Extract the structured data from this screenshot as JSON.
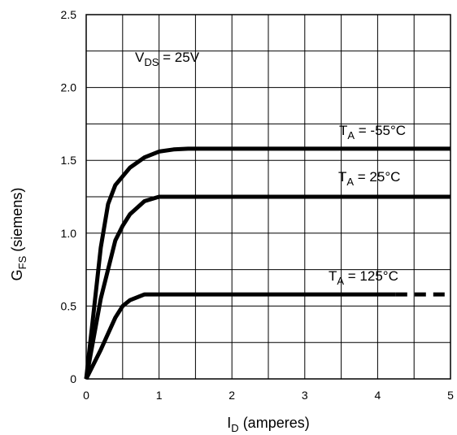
{
  "chart_data": {
    "type": "line",
    "title": "",
    "xlabel": {
      "main": "I",
      "sub": "D",
      "rest": " (amperes)"
    },
    "ylabel": {
      "main": "G",
      "sub": "FS",
      "rest": " (siemens)"
    },
    "xlim": [
      0,
      5
    ],
    "ylim": [
      0,
      2.5
    ],
    "x_ticks": [
      0,
      1,
      2,
      3,
      4,
      5
    ],
    "x_tick_labels": [
      "0",
      "1",
      "2",
      "3",
      "4",
      "5"
    ],
    "y_ticks": [
      0,
      0.5,
      1.0,
      1.5,
      2.0,
      2.5
    ],
    "y_tick_labels": [
      "0",
      "0.5",
      "1.0",
      "1.5",
      "2.0",
      "2.5"
    ],
    "grid": true,
    "minor_grid_step_x": 0.5,
    "minor_grid_step_y": 0.25,
    "annotation": {
      "main": "V",
      "sub": "DS",
      "rest": " = 25V"
    },
    "series": [
      {
        "label": {
          "main": "T",
          "sub": "A",
          "rest": " = -55°C"
        },
        "points": [
          [
            0,
            0
          ],
          [
            0.1,
            0.45
          ],
          [
            0.2,
            0.9
          ],
          [
            0.3,
            1.2
          ],
          [
            0.4,
            1.33
          ],
          [
            0.6,
            1.45
          ],
          [
            0.8,
            1.52
          ],
          [
            1.0,
            1.56
          ],
          [
            1.2,
            1.575
          ],
          [
            1.4,
            1.58
          ],
          [
            5,
            1.58
          ]
        ],
        "dashed_from": null
      },
      {
        "label": {
          "main": "T",
          "sub": "A",
          "rest": " = 25°C"
        },
        "points": [
          [
            0,
            0
          ],
          [
            0.2,
            0.55
          ],
          [
            0.4,
            0.95
          ],
          [
            0.5,
            1.05
          ],
          [
            0.6,
            1.13
          ],
          [
            0.8,
            1.22
          ],
          [
            1.0,
            1.25
          ],
          [
            5,
            1.25
          ]
        ],
        "dashed_from": null
      },
      {
        "label": {
          "main": "T",
          "sub": "A",
          "rest": " = 125°C"
        },
        "points": [
          [
            0,
            0
          ],
          [
            0.2,
            0.2
          ],
          [
            0.4,
            0.42
          ],
          [
            0.5,
            0.5
          ],
          [
            0.6,
            0.54
          ],
          [
            0.8,
            0.58
          ],
          [
            5,
            0.58
          ]
        ],
        "dashed_from": 4.25
      }
    ]
  }
}
